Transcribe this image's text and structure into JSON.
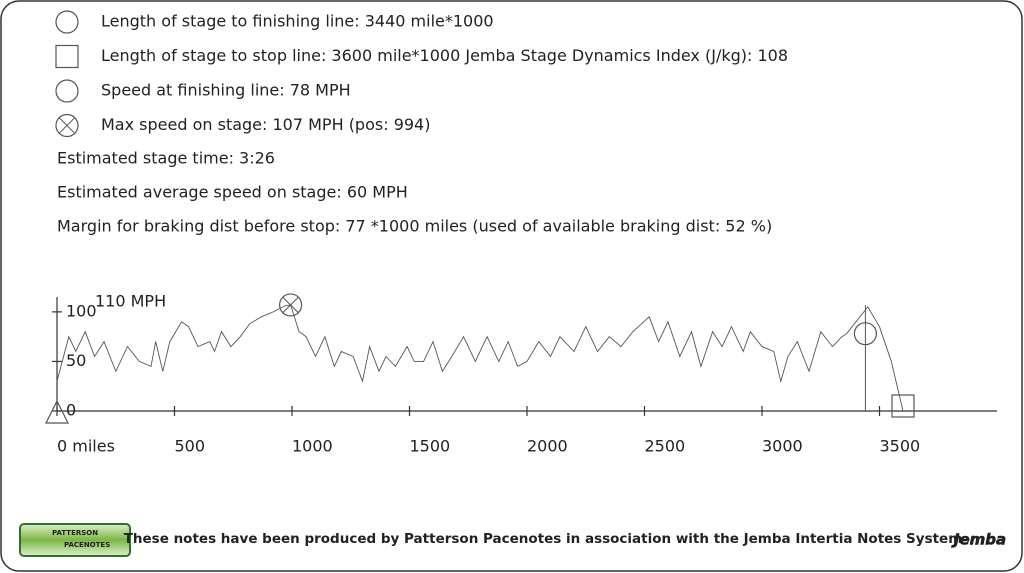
{
  "notes": [
    {
      "icon": "circle",
      "text": "Length of stage to finishing line: 3440 mile*1000"
    },
    {
      "icon": "square",
      "text": "Length of stage to stop line: 3600 mile*1000 Jemba Stage Dynamics Index (J/kg): 108"
    },
    {
      "icon": "circle",
      "text": "Speed at finishing line: 78 MPH"
    },
    {
      "icon": "circle-cross",
      "text": "Max speed on stage: 107 MPH (pos: 994)"
    }
  ],
  "summary": [
    "Estimated stage time: 3:26",
    "Estimated average speed on stage: 60 MPH",
    "Margin for braking dist before stop: 77 *1000 miles (used of available braking dist: 52 %)"
  ],
  "chart_data": {
    "type": "line",
    "annotation": "110 MPH",
    "x": [
      0,
      50,
      80,
      120,
      160,
      200,
      250,
      300,
      350,
      400,
      420,
      450,
      480,
      530,
      560,
      600,
      650,
      670,
      700,
      740,
      780,
      820,
      870,
      920,
      970,
      994,
      1030,
      1060,
      1100,
      1140,
      1180,
      1210,
      1260,
      1300,
      1330,
      1370,
      1400,
      1440,
      1490,
      1520,
      1560,
      1600,
      1640,
      1680,
      1730,
      1780,
      1830,
      1880,
      1920,
      1960,
      2000,
      2050,
      2100,
      2140,
      2200,
      2250,
      2300,
      2350,
      2400,
      2450,
      2520,
      2560,
      2600,
      2650,
      2700,
      2740,
      2790,
      2830,
      2870,
      2920,
      2950,
      3000,
      3050,
      3080,
      3110,
      3150,
      3200,
      3250,
      3300,
      3340,
      3360,
      3400,
      3450,
      3500,
      3550,
      3600
    ],
    "series": [
      {
        "color": "#555555",
        "values": [
          30,
          75,
          60,
          80,
          55,
          70,
          40,
          65,
          50,
          45,
          70,
          40,
          70,
          90,
          85,
          65,
          70,
          60,
          80,
          65,
          75,
          88,
          95,
          100,
          106,
          107,
          80,
          75,
          55,
          75,
          45,
          60,
          55,
          30,
          65,
          40,
          55,
          45,
          65,
          50,
          50,
          70,
          40,
          55,
          75,
          50,
          75,
          50,
          70,
          45,
          50,
          70,
          55,
          75,
          60,
          85,
          60,
          75,
          65,
          80,
          95,
          70,
          90,
          55,
          80,
          45,
          80,
          65,
          85,
          60,
          80,
          65,
          60,
          30,
          55,
          70,
          40,
          80,
          65,
          75,
          78,
          90,
          105,
          85,
          50,
          0
        ]
      }
    ],
    "markers": [
      {
        "shape": "circle",
        "x": 3440,
        "y": 78
      },
      {
        "shape": "circle-cross",
        "x": 994,
        "y": 107
      },
      {
        "shape": "square",
        "x": 3600,
        "y": 0
      },
      {
        "shape": "triangle",
        "x": 0,
        "y": 0
      }
    ],
    "xlim": [
      0,
      4000
    ],
    "xticks": [
      {
        "value": 0,
        "label": "0 miles"
      },
      500,
      1000,
      1500,
      2000,
      2500,
      3000,
      3500
    ],
    "ylim": [
      0,
      115
    ],
    "yticks": [
      0,
      50,
      100
    ]
  },
  "footer": {
    "logo_lines": [
      "PATTERSON",
      "PACENOTES"
    ],
    "text": "These notes have been produced by Patterson Pacenotes in association with the Jemba Intertia Notes System",
    "brand": "Jemba"
  }
}
